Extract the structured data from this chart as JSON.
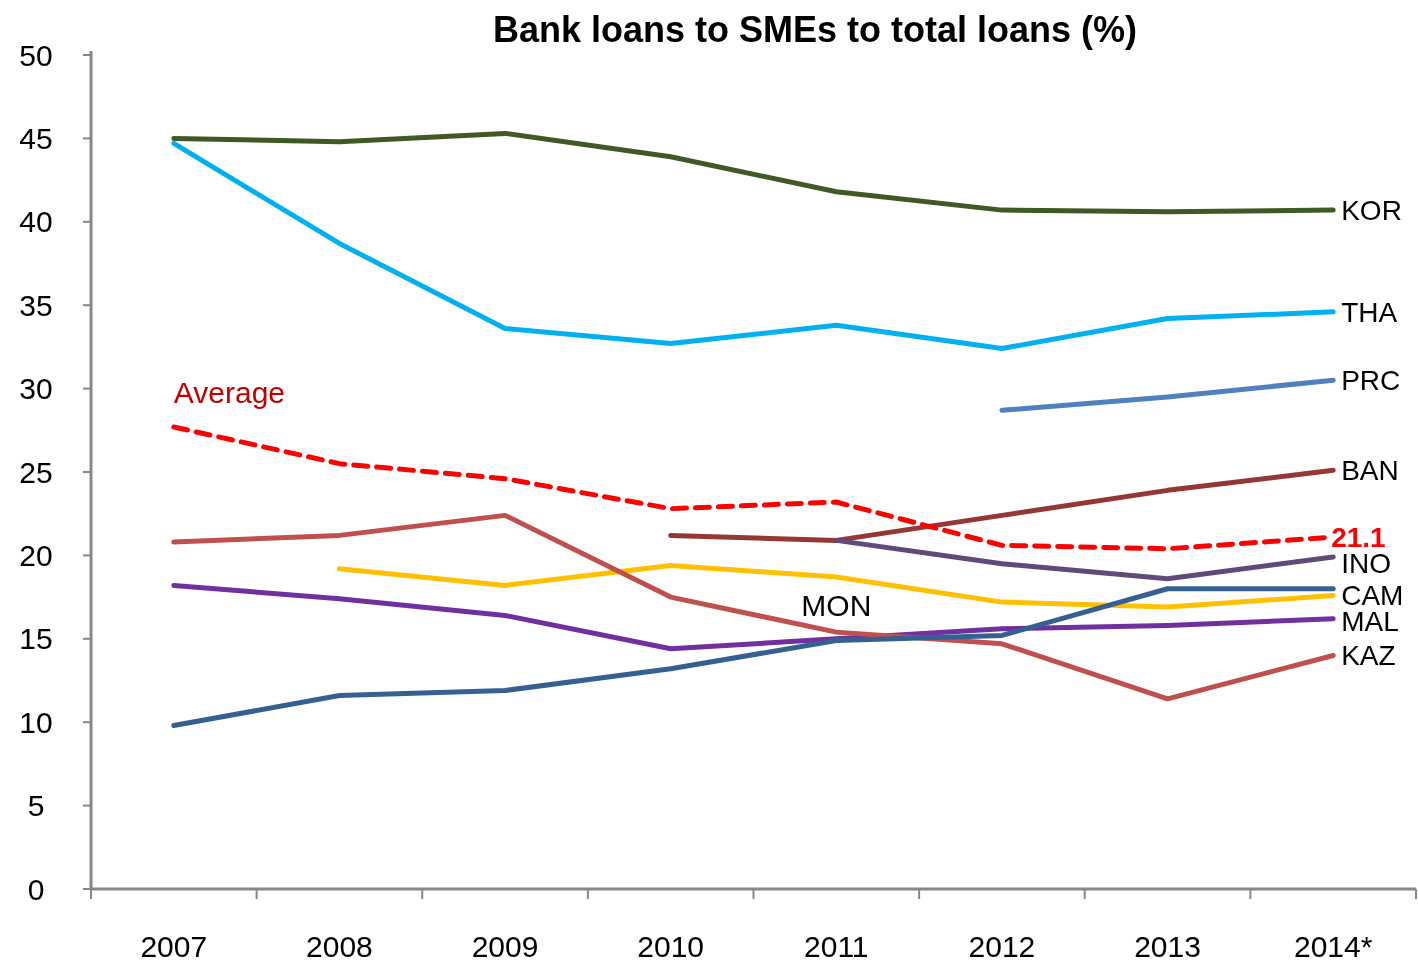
{
  "chart_data": {
    "type": "line",
    "title": "Bank loans to SMEs to total loans (%)",
    "categories": [
      "2007",
      "2008",
      "2009",
      "2010",
      "2011",
      "2012",
      "2013",
      "2014*"
    ],
    "ylim": [
      0,
      50
    ],
    "yticks": [
      0,
      5,
      10,
      15,
      20,
      25,
      30,
      35,
      40,
      45,
      50
    ],
    "grid": false,
    "marker": "none",
    "series": [
      {
        "name": "KOR",
        "color": "#3f5a25",
        "values": [
          45.0,
          44.8,
          45.3,
          43.9,
          41.8,
          40.7,
          40.6,
          40.7
        ]
      },
      {
        "name": "THA",
        "color": "#00b0f0",
        "values": [
          44.7,
          38.7,
          33.6,
          32.7,
          33.8,
          32.4,
          34.2,
          34.6
        ]
      },
      {
        "name": "PRC",
        "color": "#4f81bd",
        "values": [
          null,
          null,
          null,
          null,
          null,
          28.7,
          29.5,
          30.5
        ]
      },
      {
        "name": "BAN",
        "color": "#953735",
        "values": [
          null,
          null,
          null,
          21.2,
          20.9,
          22.4,
          23.9,
          25.1
        ]
      },
      {
        "color": "#ff0000",
        "line_style": "dashed",
        "values": [
          27.7,
          25.5,
          24.6,
          22.8,
          23.2,
          20.6,
          20.4,
          21.1
        ],
        "value_labels": [
          null,
          null,
          null,
          null,
          null,
          null,
          null,
          "21.1"
        ]
      },
      {
        "name": "INO",
        "color": "#604a7b",
        "values": [
          null,
          null,
          null,
          null,
          20.9,
          19.5,
          18.6,
          19.9
        ]
      },
      {
        "name": "CAM",
        "color": "#ffc000",
        "values": [
          null,
          19.2,
          18.2,
          19.4,
          18.7,
          17.2,
          16.9,
          17.6
        ]
      },
      {
        "name": "MAL",
        "color": "#7030a0",
        "values": [
          18.2,
          17.4,
          16.4,
          14.4,
          15.0,
          15.6,
          15.8,
          16.2
        ]
      },
      {
        "name": "KAZ",
        "color": "#c0504d",
        "values": [
          20.8,
          21.2,
          22.4,
          17.5,
          15.4,
          14.7,
          11.4,
          14.0
        ]
      },
      {
        "color": "#376092",
        "values": [
          9.8,
          11.6,
          11.9,
          13.2,
          14.9,
          15.2,
          18.0,
          18.0
        ]
      }
    ],
    "annotations": [
      {
        "text": "Average",
        "x": "2007",
        "y": 27.7
      },
      {
        "text": "MON",
        "x": "2011",
        "y": 14.9
      }
    ]
  }
}
